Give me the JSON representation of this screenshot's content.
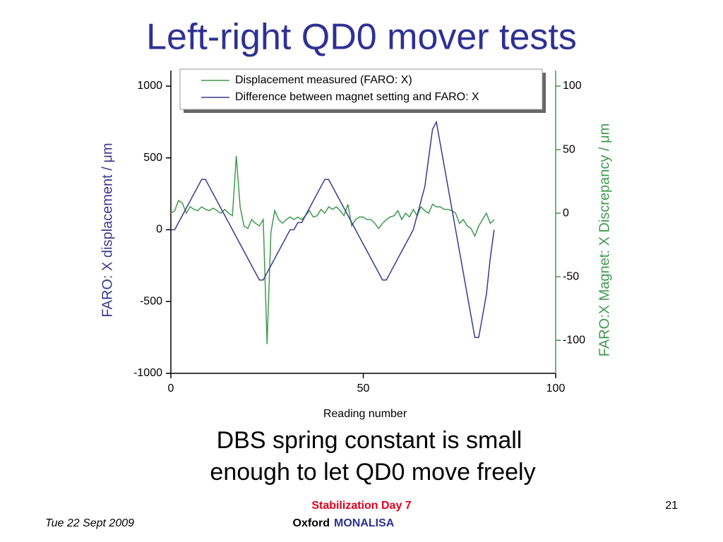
{
  "title": "Left-right QD0 mover tests",
  "chart_data": {
    "type": "line",
    "xlabel": "Reading number",
    "ylabel": "FARO: X displacement / μm",
    "y2label": "FARO:X Magnet: X Discrepancy / μm",
    "xlim": [
      0,
      100
    ],
    "xticks": [
      0,
      50,
      100
    ],
    "ylim": [
      -1000,
      1000
    ],
    "yticks": [
      -1000,
      -500,
      0,
      500,
      1000
    ],
    "y2lim": [
      -126,
      100
    ],
    "y2ticks": [
      -100,
      -50,
      0,
      50,
      100
    ],
    "legend": "top",
    "x": [
      0,
      1,
      2,
      3,
      4,
      5,
      6,
      7,
      8,
      9,
      10,
      11,
      12,
      13,
      14,
      15,
      16,
      17,
      18,
      19,
      20,
      21,
      22,
      23,
      24,
      25,
      26,
      27,
      28,
      29,
      30,
      31,
      32,
      33,
      34,
      35,
      36,
      37,
      38,
      39,
      40,
      41,
      42,
      43,
      44,
      45,
      46,
      47,
      48,
      49,
      50,
      51,
      52,
      53,
      54,
      55,
      56,
      57,
      58,
      59,
      60,
      61,
      62,
      63,
      64,
      65,
      66,
      67,
      68,
      69,
      70,
      71,
      72,
      73,
      74,
      75,
      76,
      77,
      78,
      79,
      80,
      81,
      82,
      83,
      84
    ],
    "series": [
      {
        "name": "Displacement measured (FARO: X)",
        "color": "#3f9a4f",
        "axis": "y2",
        "values": [
          0,
          2,
          10,
          8,
          0,
          5,
          3,
          2,
          5,
          3,
          2,
          4,
          2,
          0,
          3,
          0,
          -2,
          45,
          5,
          -10,
          -12,
          -5,
          -8,
          -10,
          -5,
          -103,
          -15,
          2,
          -5,
          -8,
          -5,
          -3,
          -5,
          -3,
          -5,
          -2,
          2,
          -3,
          -2,
          3,
          0,
          5,
          3,
          5,
          2,
          -2,
          7,
          -10,
          -5,
          -3,
          -3,
          -5,
          -5,
          -8,
          -12,
          -8,
          -5,
          -3,
          -2,
          2,
          -5,
          0,
          -3,
          3,
          -2,
          5,
          2,
          0,
          7,
          5,
          5,
          3,
          3,
          2,
          0,
          -8,
          -5,
          -10,
          -12,
          -18,
          -10,
          -5,
          0,
          -8,
          -5
        ]
      },
      {
        "name": "Difference between magnet setting and FARO: X",
        "color": "#3a3a8a",
        "values": [
          0,
          0,
          50,
          100,
          150,
          200,
          250,
          300,
          350,
          350,
          300,
          250,
          200,
          150,
          100,
          50,
          0,
          -50,
          -100,
          -150,
          -200,
          -250,
          -300,
          -350,
          -350,
          -300,
          -250,
          -200,
          -150,
          -100,
          -50,
          0,
          0,
          50,
          50,
          100,
          150,
          200,
          250,
          300,
          350,
          350,
          300,
          250,
          200,
          150,
          100,
          50,
          0,
          -50,
          -100,
          -150,
          -200,
          -250,
          -300,
          -350,
          -350,
          -300,
          -250,
          -200,
          -150,
          -100,
          -50,
          0,
          100,
          200,
          300,
          500,
          700,
          750,
          600,
          450,
          300,
          150,
          0,
          -150,
          -300,
          -450,
          -600,
          -750,
          -750,
          -600,
          -450,
          -200,
          0
        ]
      }
    ]
  },
  "caption": [
    "DBS spring constant is small",
    "enough to let QD0 move freely"
  ],
  "footer": {
    "event": "Stabilization Day 7",
    "place": "Oxford",
    "project": "MONALISA",
    "date": "Tue 22 Sept 2009",
    "page": "21"
  }
}
